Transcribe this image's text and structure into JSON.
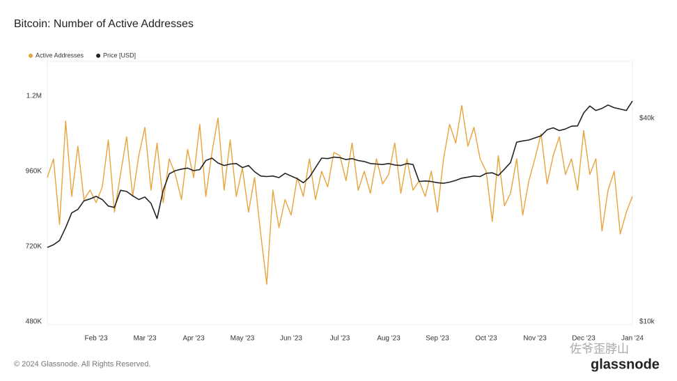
{
  "chart_data": {
    "type": "line",
    "title": "Bitcoin: Number of Active Addresses",
    "footer": "© 2024 Glassnode. All Rights Reserved.",
    "brand": "glassnode",
    "watermark": "佐爷歪脖山",
    "categories": [
      null,
      null,
      null,
      null,
      null,
      null,
      null,
      null,
      "Feb '23",
      null,
      null,
      null,
      null,
      null,
      null,
      null,
      "Mar '23",
      null,
      null,
      null,
      null,
      null,
      null,
      null,
      "Apr '23",
      null,
      null,
      null,
      null,
      null,
      null,
      null,
      "May '23",
      null,
      null,
      null,
      null,
      null,
      null,
      null,
      "Jun '23",
      null,
      null,
      null,
      null,
      null,
      null,
      null,
      "Jul '23",
      null,
      null,
      null,
      null,
      null,
      null,
      null,
      "Aug '23",
      null,
      null,
      null,
      null,
      null,
      null,
      null,
      "Sep '23",
      null,
      null,
      null,
      null,
      null,
      null,
      null,
      "Oct '23",
      null,
      null,
      null,
      null,
      null,
      null,
      null,
      "Nov '23",
      null,
      null,
      null,
      null,
      null,
      null,
      null,
      "Dec '23",
      null,
      null,
      null,
      null,
      null,
      null,
      null,
      "Jan '24"
    ],
    "series": [
      {
        "name": "Active Addresses",
        "color": "#e8a33a",
        "axis": "y",
        "values": [
          940000,
          1000000,
          790000,
          1120000,
          880000,
          1040000,
          870000,
          900000,
          860000,
          910000,
          1060000,
          830000,
          950000,
          1070000,
          880000,
          1010000,
          1100000,
          900000,
          1050000,
          860000,
          1000000,
          950000,
          870000,
          1030000,
          940000,
          1110000,
          880000,
          1020000,
          1130000,
          900000,
          1060000,
          880000,
          970000,
          830000,
          940000,
          760000,
          600000,
          900000,
          780000,
          870000,
          820000,
          940000,
          880000,
          1000000,
          870000,
          960000,
          910000,
          1020000,
          1010000,
          930000,
          1050000,
          900000,
          960000,
          890000,
          1000000,
          920000,
          950000,
          1050000,
          890000,
          1000000,
          900000,
          930000,
          880000,
          960000,
          830000,
          1000000,
          1110000,
          1050000,
          1170000,
          1040000,
          1100000,
          1000000,
          960000,
          800000,
          1010000,
          850000,
          890000,
          1000000,
          820000,
          930000,
          1000000,
          1080000,
          920000,
          1010000,
          1070000,
          950000,
          1000000,
          900000,
          1090000,
          950000,
          1000000,
          770000,
          900000,
          960000,
          760000,
          830000,
          880000
        ]
      },
      {
        "name": "Price [USD]",
        "color": "#222222",
        "axis": "y2",
        "values": [
          16600,
          16900,
          17400,
          19000,
          21000,
          21500,
          22800,
          23100,
          23500,
          23000,
          22000,
          21800,
          24500,
          24300,
          23600,
          23000,
          23400,
          22400,
          20200,
          24500,
          27400,
          28000,
          28300,
          28500,
          28000,
          28200,
          30000,
          30500,
          29500,
          29000,
          29300,
          29400,
          28600,
          29000,
          27800,
          27000,
          26900,
          27000,
          26700,
          27500,
          27000,
          26500,
          25800,
          26800,
          28600,
          30500,
          30400,
          30700,
          30600,
          30200,
          30400,
          30000,
          29800,
          29400,
          29300,
          29200,
          29400,
          29100,
          29000,
          29400,
          29200,
          26000,
          26100,
          26000,
          25800,
          25700,
          25900,
          26200,
          26600,
          26800,
          27000,
          26900,
          27500,
          27600,
          27100,
          28300,
          29600,
          34000,
          34300,
          34500,
          35000,
          35500,
          37000,
          37500,
          36800,
          37200,
          37900,
          38000,
          41500,
          43500,
          42200,
          42800,
          43800,
          43000,
          42600,
          42200,
          45000
        ]
      }
    ],
    "ylim": [
      471000,
      1311000
    ],
    "yticks": [
      {
        "value": 480000,
        "label": "480K"
      },
      {
        "value": 720000,
        "label": "720K"
      },
      {
        "value": 960000,
        "label": "960K"
      },
      {
        "value": 1200000,
        "label": "1.2M"
      }
    ],
    "y2lim": [
      9810,
      59000
    ],
    "y2scale": "log",
    "y2ticks": [
      {
        "value": 10000,
        "label": "$10k"
      },
      {
        "value": 40000,
        "label": "$40k"
      }
    ],
    "legend": "top-left"
  }
}
